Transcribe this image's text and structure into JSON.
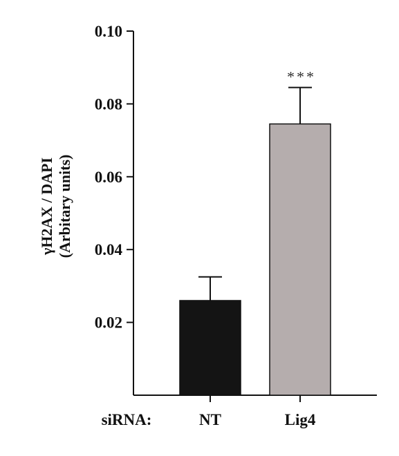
{
  "chart_data": {
    "type": "bar",
    "categories": [
      "NT",
      "Lig4"
    ],
    "values": [
      0.026,
      0.0745
    ],
    "errors": [
      0.0065,
      0.01
    ],
    "colors": [
      "#141414",
      "#b5adad"
    ],
    "ylabel_line1": "γH2AX / DAPI",
    "ylabel_line2": "(Arbitary units)",
    "xaxis_prefix": "siRNA:",
    "ylim": [
      0.0,
      0.1
    ],
    "yticks": [
      0.02,
      0.04,
      0.06,
      0.08,
      0.1
    ],
    "ytick_labels": [
      "0.02",
      "0.04",
      "0.06",
      "0.08",
      "0.10"
    ],
    "annotations": [
      {
        "category": "Lig4",
        "text": "***"
      }
    ],
    "grid": false
  }
}
